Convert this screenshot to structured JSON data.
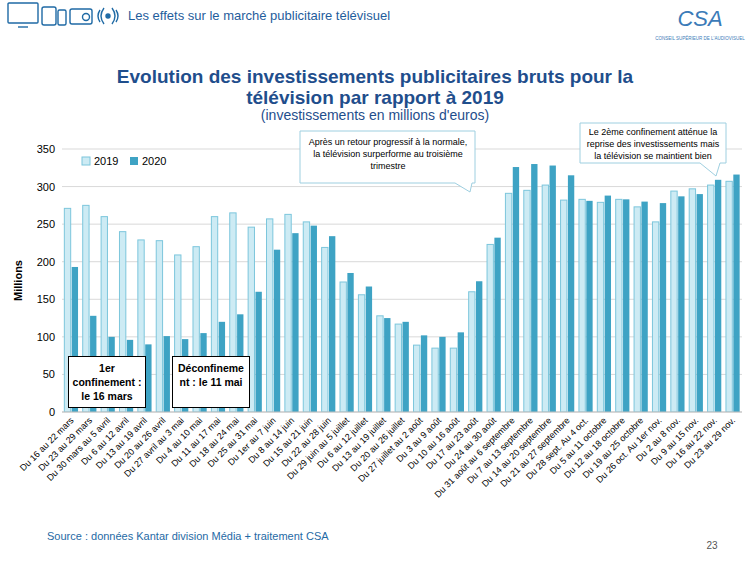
{
  "page": {
    "header": "Les effets sur le marché publicitaire télévisuel",
    "logo": "CSA",
    "logo_subtitle": "CONSEIL SUPÉRIEUR DE L'AUDIOVISUEL",
    "source": "Source : données Kantar division Média  + traitement CSA",
    "page_number": "23"
  },
  "chart_data": {
    "type": "bar",
    "title": "Evolution des investissements publicitaires bruts pour la télévision par rapport à 2019",
    "subtitle": "(investissements en millions d'euros)",
    "y_label": "Millions",
    "categories": [
      "Du 16 au 22 mars",
      "Du 23 au 29 mars",
      "Du 30 mars au 5 avril",
      "Du 6 au 12 avril",
      "Du 13 au 19 avril",
      "Du 20 au 26 avril",
      "Du 27 avril au 3 mai",
      "Du 4 au 10 mai",
      "Du 11 au 17 mai",
      "Du 18 au 24 mai",
      "Du 25 au 31 mai",
      "Du 1er au 7 juin",
      "Du 8 au 14 juin",
      "Du 15 au 21 juin",
      "Du 22 au 28 juin",
      "Du 29 juin au 5 juillet",
      "Du 6 au 12 juillet",
      "Du 13 au 19 juillet",
      "Du 20 au 26 juillet",
      "Du 27 juillet au 2 août",
      "Du 3 au 9 août",
      "Du 10 au 16 août",
      "Du 17 au 23 août",
      "Du 24 au 30 août",
      "Du 31 août au 6 septembre",
      "Du 7 au 13 septembre",
      "Du 14 au 20 septembre",
      "Du 21 au 27 septembre",
      "Du 28 sept. Au 4 oct.",
      "Du 5 au 11 octobre",
      "Du 12 au 18 octobre",
      "Du 19 au 25 octobre",
      "Du 26 oct. Au 1er nov.",
      "Du 2 au 8 nov.",
      "Du 9 au 15 nov.",
      "Du 16 au 22 nov.",
      "Du 23 au 29 nov."
    ],
    "series": [
      {
        "name": "2019",
        "color": "#cdebf4",
        "values": [
          271,
          275,
          260,
          240,
          229,
          228,
          209,
          220,
          260,
          265,
          246,
          257,
          263,
          253,
          219,
          173,
          156,
          128,
          117,
          89,
          85,
          85,
          160,
          223,
          291,
          295,
          302,
          282,
          283,
          279,
          283,
          273,
          253,
          294,
          297,
          302,
          307
        ]
      },
      {
        "name": "2020",
        "color": "#3ea3c4",
        "values": [
          193,
          128,
          100,
          96,
          90,
          101,
          97,
          105,
          120,
          130,
          160,
          216,
          238,
          248,
          234,
          185,
          167,
          125,
          120,
          102,
          100,
          106,
          174,
          232,
          326,
          330,
          328,
          315,
          281,
          288,
          283,
          280,
          278,
          287,
          290,
          309,
          316
        ]
      }
    ],
    "ylim": [
      0,
      350
    ],
    "yticks": [
      0,
      50,
      100,
      150,
      200,
      250,
      300,
      350
    ],
    "grid": true,
    "legend": "top-left",
    "annotations": [
      "1er confinement : le 16 mars",
      "Déconfinement : le 11 mai",
      "Après un retour progressif à la normale, la télévision surperforme au troisième trimestre",
      "Le 2ème confinement atténue la reprise des investissements mais la télévision se maintient bien"
    ]
  }
}
